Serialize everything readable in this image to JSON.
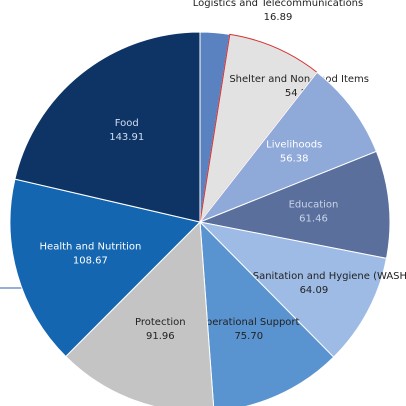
{
  "chart_data": {
    "type": "pie",
    "categories": [
      "Logistics and Telecommunications",
      "Shelter and Non-Food Items",
      "Livelihoods",
      "Education",
      "Water, Sanitation and Hygiene (WASH)",
      "Operational Support",
      "Protection",
      "Health and Nutrition",
      "Food"
    ],
    "values": [
      16.89,
      54.24,
      56.38,
      61.46,
      64.09,
      75.7,
      91.96,
      108.67,
      143.91
    ],
    "value_labels": [
      "16.89",
      "54.24",
      "56.38",
      "61.46",
      "64.09",
      "75.70",
      "91.96",
      "108.67",
      "143.91"
    ],
    "colors": [
      "#5b82c0",
      "#e2e2e2",
      "#8fa9d9",
      "#5a6f9c",
      "#9dbbe4",
      "#5a94d0",
      "#c4c4c4",
      "#1466b0",
      "#0e3466"
    ]
  }
}
